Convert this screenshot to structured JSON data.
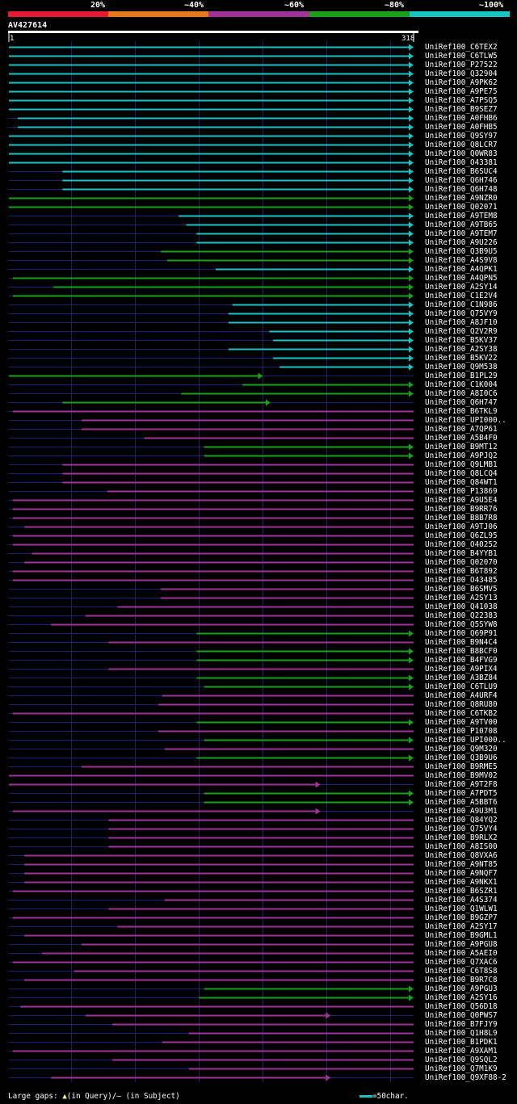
{
  "legend": {
    "labels": [
      "20%",
      "~40%",
      "~60%",
      "~80%",
      "~100%"
    ],
    "colors": [
      "#e8182e",
      "#e8781e",
      "#a0329a",
      "#18a018",
      "#19c3c3"
    ]
  },
  "query": {
    "id": "AV427614",
    "start": "1",
    "end": "318",
    "length": 318
  },
  "hits": [
    {
      "name": "UniRef100_C6TEX2",
      "color": "cyan",
      "start": 1,
      "end": 318,
      "arrow": true
    },
    {
      "name": "UniRef100_C6TLW5",
      "color": "cyan",
      "start": 1,
      "end": 318,
      "arrow": true
    },
    {
      "name": "UniRef100_P27522",
      "color": "cyan",
      "start": 1,
      "end": 318,
      "arrow": true
    },
    {
      "name": "UniRef100_Q32904",
      "color": "cyan",
      "start": 1,
      "end": 318,
      "arrow": true
    },
    {
      "name": "UniRef100_A9PK62",
      "color": "cyan",
      "start": 1,
      "end": 318,
      "arrow": true
    },
    {
      "name": "UniRef100_A9PE75",
      "color": "cyan",
      "start": 1,
      "end": 318,
      "arrow": true
    },
    {
      "name": "UniRef100_A7PSQ5",
      "color": "cyan",
      "start": 1,
      "end": 318,
      "arrow": true
    },
    {
      "name": "UniRef100_B9SEZ7",
      "color": "cyan",
      "start": 1,
      "end": 318,
      "arrow": true
    },
    {
      "name": "UniRef100_A0FHB6",
      "color": "cyan",
      "start": 8,
      "end": 318,
      "arrow": true
    },
    {
      "name": "UniRef100_A0FHB5",
      "color": "cyan",
      "start": 8,
      "end": 318,
      "arrow": true
    },
    {
      "name": "UniRef100_Q9SY97",
      "color": "cyan",
      "start": 1,
      "end": 318,
      "arrow": true
    },
    {
      "name": "UniRef100_Q8LCR7",
      "color": "cyan",
      "start": 1,
      "end": 318,
      "arrow": true
    },
    {
      "name": "UniRef100_Q0WR83",
      "color": "cyan",
      "start": 1,
      "end": 318,
      "arrow": true
    },
    {
      "name": "UniRef100_O43381",
      "color": "cyan",
      "start": 1,
      "end": 318,
      "arrow": true
    },
    {
      "name": "UniRef100_B6SUC4",
      "color": "cyan",
      "start": 43,
      "end": 318,
      "arrow": true
    },
    {
      "name": "UniRef100_Q6H746",
      "color": "cyan",
      "start": 43,
      "end": 318,
      "arrow": true
    },
    {
      "name": "UniRef100_Q6H748",
      "color": "cyan",
      "start": 43,
      "end": 318,
      "arrow": true
    },
    {
      "name": "UniRef100_A9NZR0",
      "color": "green",
      "start": 1,
      "end": 318,
      "arrow": true
    },
    {
      "name": "UniRef100_Q02071",
      "color": "green",
      "start": 1,
      "end": 318,
      "arrow": true
    },
    {
      "name": "UniRef100_A9TEM8",
      "color": "cyan",
      "start": 134,
      "end": 318,
      "arrow": true
    },
    {
      "name": "UniRef100_A9TB65",
      "color": "cyan",
      "start": 140,
      "end": 318,
      "arrow": true
    },
    {
      "name": "UniRef100_A9TEM7",
      "color": "cyan",
      "start": 148,
      "end": 318,
      "arrow": true
    },
    {
      "name": "UniRef100_A9U226",
      "color": "cyan",
      "start": 148,
      "end": 318,
      "arrow": true
    },
    {
      "name": "UniRef100_Q3B9U5",
      "color": "green",
      "start": 120,
      "end": 318,
      "arrow": true
    },
    {
      "name": "UniRef100_A4S9V8",
      "color": "green",
      "start": 125,
      "end": 318,
      "arrow": true
    },
    {
      "name": "UniRef100_A4QPK1",
      "color": "cyan",
      "start": 163,
      "end": 318,
      "arrow": true
    },
    {
      "name": "UniRef100_A4QPN5",
      "color": "green",
      "start": 4,
      "end": 318,
      "arrow": true
    },
    {
      "name": "UniRef100_A2SY14",
      "color": "green",
      "start": 36,
      "end": 318,
      "arrow": true
    },
    {
      "name": "UniRef100_C1E2V4",
      "color": "green",
      "start": 4,
      "end": 318,
      "arrow": true
    },
    {
      "name": "UniRef100_C1N986",
      "color": "cyan",
      "start": 176,
      "end": 318,
      "arrow": true
    },
    {
      "name": "UniRef100_Q75VY9",
      "color": "cyan",
      "start": 173,
      "end": 318,
      "arrow": true
    },
    {
      "name": "UniRef100_A8JF10",
      "color": "cyan",
      "start": 173,
      "end": 318,
      "arrow": true
    },
    {
      "name": "UniRef100_Q2V2R9",
      "color": "cyan",
      "start": 205,
      "end": 318,
      "arrow": true
    },
    {
      "name": "UniRef100_B5KV37",
      "color": "cyan",
      "start": 208,
      "end": 318,
      "arrow": true
    },
    {
      "name": "UniRef100_A2SY38",
      "color": "cyan",
      "start": 173,
      "end": 318,
      "arrow": true
    },
    {
      "name": "UniRef100_B5KV22",
      "color": "cyan",
      "start": 208,
      "end": 318,
      "arrow": true
    },
    {
      "name": "UniRef100_Q9M538",
      "color": "cyan",
      "start": 213,
      "end": 318,
      "arrow": true
    },
    {
      "name": "UniRef100_B1PL29",
      "color": "green",
      "start": 1,
      "end": 200,
      "arrow": true
    },
    {
      "name": "UniRef100_C1K004",
      "color": "green",
      "start": 184,
      "end": 318,
      "arrow": true
    },
    {
      "name": "UniRef100_A8I0C6",
      "color": "green",
      "start": 136,
      "end": 318,
      "arrow": true
    },
    {
      "name": "UniRef100_Q6H747",
      "color": "green",
      "start": 43,
      "end": 206,
      "arrow": true
    },
    {
      "name": "UniRef100_B6TKL9",
      "color": "purple",
      "start": 4,
      "end": 318,
      "arrow": false
    },
    {
      "name": "UniRef100_UPI000..",
      "color": "purple",
      "start": 58,
      "end": 318,
      "arrow": false
    },
    {
      "name": "UniRef100_A7QP61",
      "color": "purple",
      "start": 58,
      "end": 318,
      "arrow": false
    },
    {
      "name": "UniRef100_A5B4F0",
      "color": "purple",
      "start": 107,
      "end": 318,
      "arrow": false
    },
    {
      "name": "UniRef100_B9MT12",
      "color": "green",
      "start": 154,
      "end": 318,
      "arrow": true
    },
    {
      "name": "UniRef100_A9PJQ2",
      "color": "green",
      "start": 154,
      "end": 318,
      "arrow": true
    },
    {
      "name": "UniRef100_Q9LMB1",
      "color": "purple",
      "start": 43,
      "end": 318,
      "arrow": false
    },
    {
      "name": "UniRef100_Q8LCQ4",
      "color": "purple",
      "start": 43,
      "end": 318,
      "arrow": false
    },
    {
      "name": "UniRef100_Q84WT1",
      "color": "purple",
      "start": 43,
      "end": 318,
      "arrow": false
    },
    {
      "name": "UniRef100_P13869",
      "color": "purple",
      "start": 78,
      "end": 318,
      "arrow": false
    },
    {
      "name": "UniRef100_A9U5E4",
      "color": "purple",
      "start": 4,
      "end": 318,
      "arrow": false
    },
    {
      "name": "UniRef100_B9RR76",
      "color": "purple",
      "start": 4,
      "end": 318,
      "arrow": false
    },
    {
      "name": "UniRef100_B8B7R8",
      "color": "purple",
      "start": 4,
      "end": 318,
      "arrow": false
    },
    {
      "name": "UniRef100_A9TJ06",
      "color": "purple",
      "start": 13,
      "end": 318,
      "arrow": false
    },
    {
      "name": "UniRef100_Q6ZL95",
      "color": "purple",
      "start": 4,
      "end": 318,
      "arrow": false
    },
    {
      "name": "UniRef100_O40252",
      "color": "purple",
      "start": 4,
      "end": 318,
      "arrow": false
    },
    {
      "name": "UniRef100_B4YYB1",
      "color": "purple",
      "start": 19,
      "end": 318,
      "arrow": false
    },
    {
      "name": "UniRef100_Q02070",
      "color": "purple",
      "start": 13,
      "end": 318,
      "arrow": false
    },
    {
      "name": "UniRef100_B6T892",
      "color": "purple",
      "start": 4,
      "end": 318,
      "arrow": false
    },
    {
      "name": "UniRef100_O43485",
      "color": "purple",
      "start": 4,
      "end": 318,
      "arrow": false
    },
    {
      "name": "UniRef100_B6SMV5",
      "color": "purple",
      "start": 120,
      "end": 318,
      "arrow": false
    },
    {
      "name": "UniRef100_A2SY13",
      "color": "purple",
      "start": 120,
      "end": 318,
      "arrow": false
    },
    {
      "name": "UniRef100_Q41038",
      "color": "purple",
      "start": 86,
      "end": 318,
      "arrow": false
    },
    {
      "name": "UniRef100_Q22383",
      "color": "purple",
      "start": 61,
      "end": 318,
      "arrow": false
    },
    {
      "name": "UniRef100_Q5SYW8",
      "color": "purple",
      "start": 34,
      "end": 318,
      "arrow": false
    },
    {
      "name": "UniRef100_Q69P91",
      "color": "green",
      "start": 148,
      "end": 318,
      "arrow": true
    },
    {
      "name": "UniRef100_B9N4C4",
      "color": "purple",
      "start": 79,
      "end": 318,
      "arrow": false
    },
    {
      "name": "UniRef100_B8BCF0",
      "color": "green",
      "start": 148,
      "end": 318,
      "arrow": true
    },
    {
      "name": "UniRef100_B4FVG9",
      "color": "green",
      "start": 148,
      "end": 318,
      "arrow": true
    },
    {
      "name": "UniRef100_A9PIX4",
      "color": "purple",
      "start": 79,
      "end": 318,
      "arrow": false
    },
    {
      "name": "UniRef100_A3BZ84",
      "color": "green",
      "start": 148,
      "end": 318,
      "arrow": true
    },
    {
      "name": "UniRef100_C6TLU9",
      "color": "green",
      "start": 154,
      "end": 318,
      "arrow": true
    },
    {
      "name": "UniRef100_A4URF4",
      "color": "purple",
      "start": 121,
      "end": 318,
      "arrow": false
    },
    {
      "name": "UniRef100_Q8RU80",
      "color": "purple",
      "start": 118,
      "end": 318,
      "arrow": false
    },
    {
      "name": "UniRef100_C6TKB2",
      "color": "purple",
      "start": 4,
      "end": 318,
      "arrow": false
    },
    {
      "name": "UniRef100_A9TV00",
      "color": "green",
      "start": 148,
      "end": 318,
      "arrow": true
    },
    {
      "name": "UniRef100_P10708",
      "color": "purple",
      "start": 118,
      "end": 318,
      "arrow": false
    },
    {
      "name": "UniRef100_UPI000..",
      "color": "green",
      "start": 154,
      "end": 318,
      "arrow": true
    },
    {
      "name": "UniRef100_Q9M320",
      "color": "purple",
      "start": 123,
      "end": 318,
      "arrow": false
    },
    {
      "name": "UniRef100_Q3B9U6",
      "color": "green",
      "start": 148,
      "end": 318,
      "arrow": true
    },
    {
      "name": "UniRef100_B9RME5",
      "color": "purple",
      "start": 58,
      "end": 318,
      "arrow": false
    },
    {
      "name": "UniRef100_B9MV02",
      "color": "purple",
      "start": 1,
      "end": 318,
      "arrow": false
    },
    {
      "name": "UniRef100_A9T2F8",
      "color": "purple",
      "start": 1,
      "end": 245,
      "arrow": true
    },
    {
      "name": "UniRef100_A7PDT5",
      "color": "green",
      "start": 154,
      "end": 318,
      "arrow": true
    },
    {
      "name": "UniRef100_A5BBT6",
      "color": "green",
      "start": 154,
      "end": 318,
      "arrow": true
    },
    {
      "name": "UniRef100_A9U3M1",
      "color": "purple",
      "start": 4,
      "end": 245,
      "arrow": true
    },
    {
      "name": "UniRef100_Q84YQ2",
      "color": "purple",
      "start": 79,
      "end": 318,
      "arrow": false
    },
    {
      "name": "UniRef100_Q75VY4",
      "color": "purple",
      "start": 79,
      "end": 318,
      "arrow": false
    },
    {
      "name": "UniRef100_B9RLX2",
      "color": "purple",
      "start": 79,
      "end": 318,
      "arrow": false
    },
    {
      "name": "UniRef100_A8IS00",
      "color": "purple",
      "start": 79,
      "end": 318,
      "arrow": false
    },
    {
      "name": "UniRef100_Q8VXA6",
      "color": "purple",
      "start": 13,
      "end": 318,
      "arrow": false
    },
    {
      "name": "UniRef100_A9NT85",
      "color": "purple",
      "start": 13,
      "end": 318,
      "arrow": false
    },
    {
      "name": "UniRef100_A9NQF7",
      "color": "purple",
      "start": 13,
      "end": 318,
      "arrow": false
    },
    {
      "name": "UniRef100_A9NKX1",
      "color": "purple",
      "start": 13,
      "end": 318,
      "arrow": false
    },
    {
      "name": "UniRef100_B6SZR1",
      "color": "purple",
      "start": 4,
      "end": 318,
      "arrow": false
    },
    {
      "name": "UniRef100_A4S374",
      "color": "purple",
      "start": 123,
      "end": 318,
      "arrow": false
    },
    {
      "name": "UniRef100_Q1WLW1",
      "color": "purple",
      "start": 79,
      "end": 318,
      "arrow": false
    },
    {
      "name": "UniRef100_B9GZP7",
      "color": "purple",
      "start": 4,
      "end": 318,
      "arrow": false
    },
    {
      "name": "UniRef100_A2SY17",
      "color": "purple",
      "start": 86,
      "end": 318,
      "arrow": false
    },
    {
      "name": "UniRef100_B9GML1",
      "color": "purple",
      "start": 13,
      "end": 318,
      "arrow": false
    },
    {
      "name": "UniRef100_A9PGU8",
      "color": "purple",
      "start": 58,
      "end": 318,
      "arrow": false
    },
    {
      "name": "UniRef100_A5AEI0",
      "color": "purple",
      "start": 27,
      "end": 318,
      "arrow": false
    },
    {
      "name": "UniRef100_Q7XAC6",
      "color": "purple",
      "start": 4,
      "end": 318,
      "arrow": false
    },
    {
      "name": "UniRef100_C6T8S8",
      "color": "purple",
      "start": 52,
      "end": 318,
      "arrow": false
    },
    {
      "name": "UniRef100_B9R7C8",
      "color": "purple",
      "start": 13,
      "end": 318,
      "arrow": false
    },
    {
      "name": "UniRef100_A9PGU3",
      "color": "green",
      "start": 154,
      "end": 318,
      "arrow": true
    },
    {
      "name": "UniRef100_A2SY16",
      "color": "green",
      "start": 150,
      "end": 318,
      "arrow": true
    },
    {
      "name": "UniRef100_Q56D18",
      "color": "purple",
      "start": 10,
      "end": 318,
      "arrow": false
    },
    {
      "name": "UniRef100_Q0PWS7",
      "color": "purple",
      "start": 61,
      "end": 253,
      "arrow": true
    },
    {
      "name": "UniRef100_B7FJY9",
      "color": "purple",
      "start": 82,
      "end": 318,
      "arrow": false
    },
    {
      "name": "UniRef100_Q1H8L9",
      "color": "purple",
      "start": 142,
      "end": 318,
      "arrow": false
    },
    {
      "name": "UniRef100_B1PDK1",
      "color": "purple",
      "start": 121,
      "end": 318,
      "arrow": false
    },
    {
      "name": "UniRef100_A9XAM1",
      "color": "purple",
      "start": 4,
      "end": 318,
      "arrow": false
    },
    {
      "name": "UniRef100_Q9SQL2",
      "color": "purple",
      "start": 82,
      "end": 318,
      "arrow": false
    },
    {
      "name": "UniRef100_Q7M1K9",
      "color": "purple",
      "start": 142,
      "end": 318,
      "arrow": false
    },
    {
      "name": "UniRef100_Q9XF88-2",
      "color": "purple",
      "start": 34,
      "end": 253,
      "arrow": true
    }
  ],
  "footer": {
    "large_gaps_prefix": "Large gaps:",
    "large_gaps_query": "(in Query)/",
    "large_gaps_subject": "(in Subject)",
    "triangle_glyph": "▲",
    "dash_glyph": "–",
    "scale_label": "=50char."
  },
  "colors": {
    "cyan": "#19c3c3",
    "green": "#18a018",
    "purple": "#a0329a",
    "grid": "#20206a",
    "backbone": "#202070",
    "gap_marker": "#ffff80"
  }
}
